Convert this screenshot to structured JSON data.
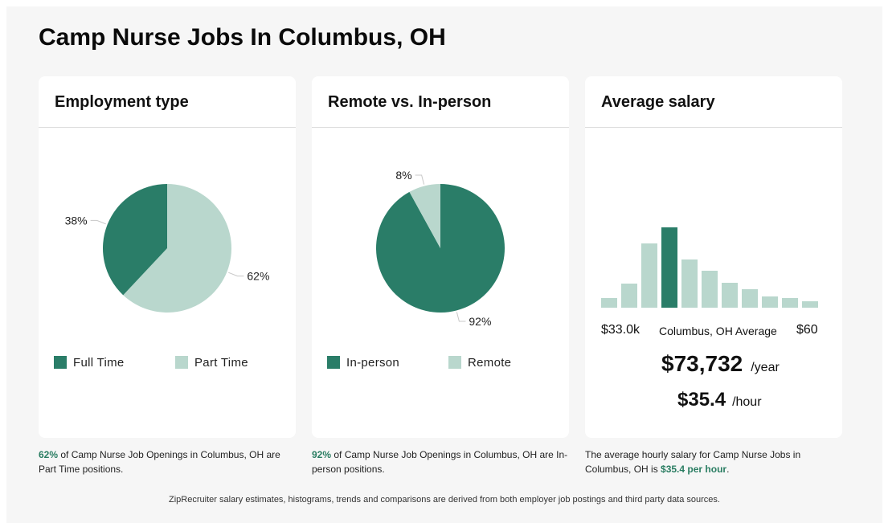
{
  "page": {
    "title": "Camp Nurse Jobs In Columbus, OH",
    "footer": "ZipRecruiter salary estimates, histograms, trends and comparisons are derived from both employer job postings and third party data sources."
  },
  "colors": {
    "dark": "#2a7d68",
    "light": "#b9d7cd",
    "accent_text": "#2a7d62"
  },
  "employment": {
    "title": "Employment type",
    "legend": [
      {
        "label": "Full Time",
        "color": "#2a7d68"
      },
      {
        "label": "Part Time",
        "color": "#b9d7cd"
      }
    ],
    "caption_pct": "62%",
    "caption_rest": " of Camp Nurse Job Openings in Columbus, OH are Part Time positions."
  },
  "remote": {
    "title": "Remote vs. In-person",
    "legend": [
      {
        "label": "In-person",
        "color": "#2a7d68"
      },
      {
        "label": "Remote",
        "color": "#b9d7cd"
      }
    ],
    "caption_pct": "92%",
    "caption_rest": " of Camp Nurse Job Openings in Columbus, OH are In-person positions."
  },
  "salary": {
    "title": "Average salary",
    "min_label": "$33.0k",
    "max_label": "$60",
    "mid_label": "Columbus, OH Average",
    "yearly": "$73,732",
    "yearly_unit": "/year",
    "hourly": "$35.4",
    "hourly_unit": "/hour",
    "caption_pre": "The average hourly salary for Camp Nurse Jobs in Columbus, OH is ",
    "caption_accent": "$35.4 per hour",
    "caption_post": "."
  },
  "chart_data": [
    {
      "type": "pie",
      "title": "Employment type",
      "series": [
        {
          "name": "Full Time",
          "value": 38,
          "label": "38%"
        },
        {
          "name": "Part Time",
          "value": 62,
          "label": "62%"
        }
      ]
    },
    {
      "type": "pie",
      "title": "Remote vs. In-person",
      "series": [
        {
          "name": "In-person",
          "value": 92,
          "label": "92%"
        },
        {
          "name": "Remote",
          "value": 8,
          "label": "8%"
        }
      ]
    },
    {
      "type": "bar",
      "title": "Average salary",
      "xlabel": "",
      "ylabel": "",
      "bin_values": [
        12,
        30,
        80,
        100,
        60,
        46,
        31,
        23,
        14,
        12,
        8
      ],
      "highlight_index": 3,
      "x_range_labels": [
        "$33.0k",
        "$60"
      ]
    }
  ]
}
